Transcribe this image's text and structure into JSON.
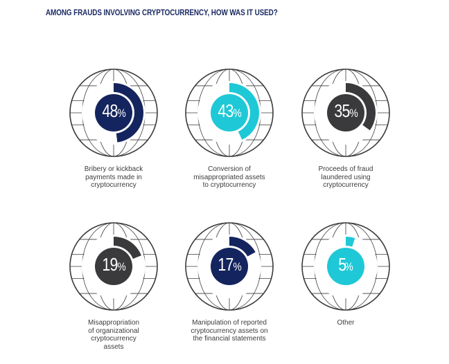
{
  "title": "AMONG FRAUDS INVOLVING CRYPTOCURRENCY, HOW WAS IT USED?",
  "colors": {
    "navy": "#14245e",
    "teal": "#1fc8d6",
    "gray": "#3a3a3c",
    "globe_line": "#3a3a3a"
  },
  "chart_data": {
    "type": "radial-bar",
    "title": "AMONG FRAUDS INVOLVING CRYPTOCURRENCY, HOW WAS IT USED?",
    "unit": "%",
    "items": [
      {
        "value": 48,
        "value_text": "48",
        "unit_text": "%",
        "label_lines": [
          "Bribery or kickback",
          "payments made in",
          "cryptocurrency"
        ],
        "color": "#14245e"
      },
      {
        "value": 43,
        "value_text": "43",
        "unit_text": "%",
        "label_lines": [
          "Conversion of",
          "misappropriated assets",
          "to cryptocurrency"
        ],
        "color": "#1fc8d6"
      },
      {
        "value": 35,
        "value_text": "35",
        "unit_text": "%",
        "label_lines": [
          "Proceeds of fraud",
          "laundered using",
          "cryptocurrency"
        ],
        "color": "#3a3a3c"
      },
      {
        "value": 19,
        "value_text": "19",
        "unit_text": "%",
        "label_lines": [
          "Misappropriation",
          "of organizational",
          "cryptocurrency",
          "assets"
        ],
        "color": "#3a3a3c"
      },
      {
        "value": 17,
        "value_text": "17",
        "unit_text": "%",
        "label_lines": [
          "Manipulation of reported",
          "cryptocurrency assets on",
          "the financial statements"
        ],
        "color": "#14245e"
      },
      {
        "value": 5,
        "value_text": "5",
        "unit_text": "%",
        "label_lines": [
          "Other"
        ],
        "color": "#1fc8d6"
      }
    ]
  }
}
